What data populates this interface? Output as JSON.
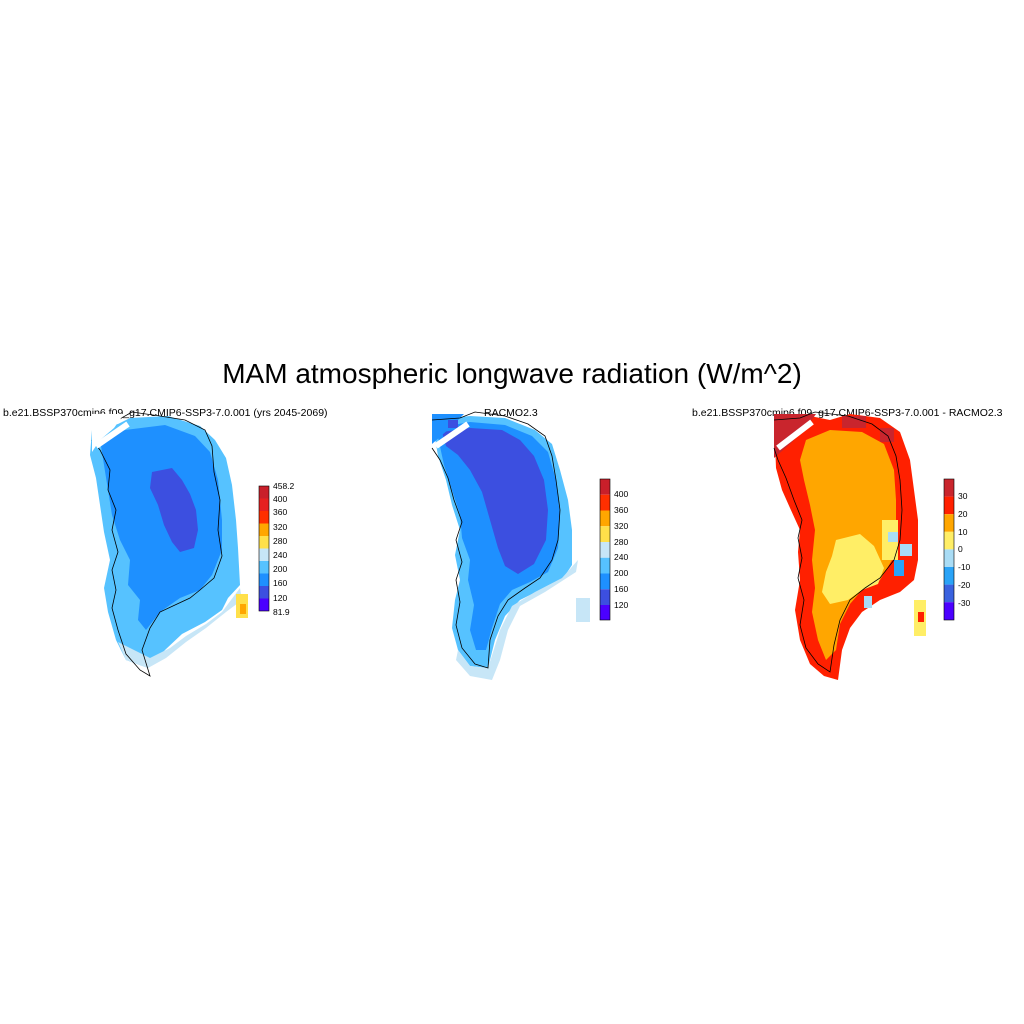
{
  "title": "MAM atmospheric longwave radiation (W/m^2)",
  "panels": [
    {
      "title": "b.e21.BSSP370cmip6.f09_g17.CMIP6-SSP3-7.0.001 (yrs 2045-2069)",
      "colorbar_labels": [
        "458.2",
        "400",
        "360",
        "320",
        "280",
        "240",
        "200",
        "160",
        "120",
        "81.9"
      ]
    },
    {
      "title": "RACMO2.3",
      "colorbar_labels": [
        "400",
        "360",
        "320",
        "280",
        "240",
        "200",
        "160",
        "120"
      ]
    },
    {
      "title": "b.e21.BSSP370cmip6.f09_g17.CMIP6-SSP3-7.0.001 - RACMO2.3",
      "colorbar_labels": [
        "30",
        "20",
        "10",
        "0",
        "-10",
        "-20",
        "-30"
      ]
    }
  ],
  "colors": {
    "abs_scale": [
      "#4b00ff",
      "#3c4fe0",
      "#1e90ff",
      "#56c2ff",
      "#c7e6f7",
      "#ffe04a",
      "#ffa600",
      "#ff2f00",
      "#e62020",
      "#c91f2a"
    ],
    "diff_scale": [
      "#4b00ff",
      "#3a62df",
      "#2aa3f7",
      "#a9dcf5",
      "#ffee66",
      "#ffa600",
      "#ff2000",
      "#c9252d"
    ]
  }
}
